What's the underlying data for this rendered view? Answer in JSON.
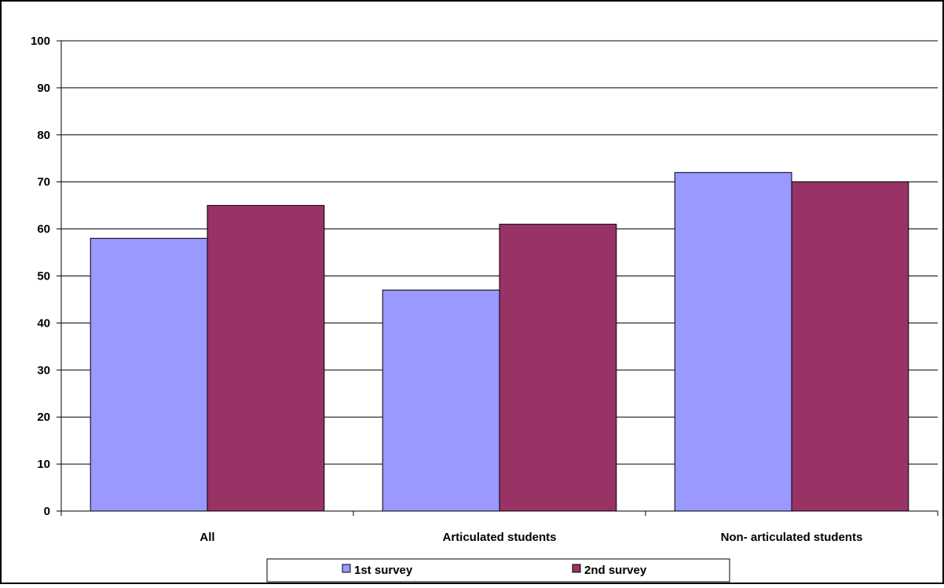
{
  "chart_data": {
    "type": "bar",
    "title": "",
    "xlabel": "",
    "ylabel": "",
    "categories": [
      "All",
      "Articulated students",
      "Non- articulated students"
    ],
    "series": [
      {
        "name": "1st survey",
        "color": "#9999FF",
        "values": [
          58,
          47,
          72
        ]
      },
      {
        "name": "2nd survey",
        "color": "#993366",
        "values": [
          65,
          61,
          70
        ]
      }
    ],
    "ylim": [
      0,
      100
    ],
    "yticks": [
      "0",
      "10",
      "20",
      "30",
      "40",
      "50",
      "60",
      "70",
      "80",
      "90",
      "100"
    ],
    "grid": true,
    "legend_position": "bottom-center"
  }
}
